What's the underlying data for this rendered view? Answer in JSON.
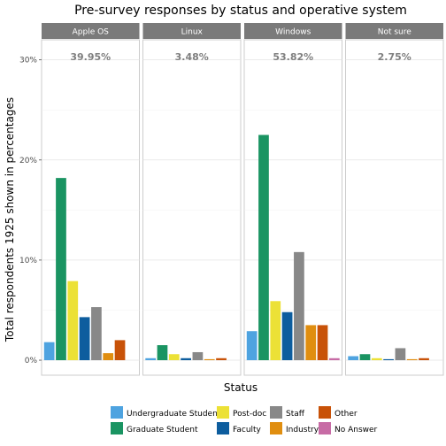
{
  "chart_data": {
    "type": "bar",
    "title": "Pre-survey responses by status and operative system",
    "xlabel": "Status",
    "ylabel": "Total respondents 1925 shown in percentages",
    "ylim": [
      -1.5,
      32
    ],
    "yticks": [
      0,
      10,
      20,
      30
    ],
    "ytick_labels": [
      "0%",
      "10%",
      "20%",
      "30%"
    ],
    "grid": true,
    "legend_position": "bottom",
    "categories": [
      "Undergraduate Student",
      "Graduate Student",
      "Post-doc",
      "Faculty",
      "Staff",
      "Industry",
      "Other",
      "No Answer"
    ],
    "colors": [
      "#4EA3E0",
      "#1A9462",
      "#ECE136",
      "#0D5D9E",
      "#888888",
      "#E08E10",
      "#C85208",
      "#C76BA5"
    ],
    "panels": [
      {
        "name": "Apple OS",
        "total_label": "39.95%",
        "values": [
          1.8,
          18.2,
          7.9,
          4.3,
          5.3,
          0.7,
          2.0,
          0.0
        ]
      },
      {
        "name": "Linux",
        "total_label": "3.48%",
        "values": [
          0.2,
          1.5,
          0.6,
          0.2,
          0.8,
          0.1,
          0.2,
          0.0
        ]
      },
      {
        "name": "Windows",
        "total_label": "53.82%",
        "values": [
          2.9,
          22.5,
          5.9,
          4.8,
          10.8,
          3.5,
          3.5,
          0.2
        ]
      },
      {
        "name": "Not sure",
        "total_label": "2.75%",
        "values": [
          0.4,
          0.6,
          0.2,
          0.1,
          1.2,
          0.1,
          0.2,
          0.0
        ]
      }
    ]
  }
}
